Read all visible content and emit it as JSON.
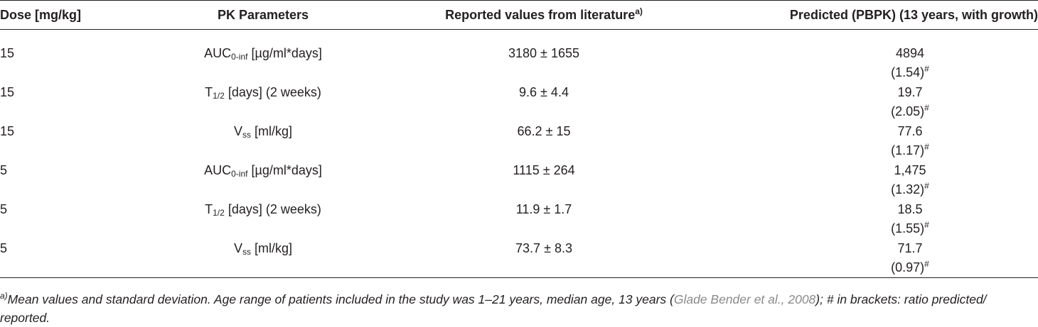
{
  "table": {
    "header": {
      "dose": "Dose [mg/kg]",
      "parameter": "PK Parameters",
      "reported": {
        "text": "Reported values from literature",
        "sup": "a)"
      },
      "predicted": "Predicted (PBPK) (13 years, with growth)"
    },
    "rows": [
      {
        "dose": "15",
        "parameter": {
          "main": "AUC",
          "sub": "0-inf",
          "rest": " [µg/ml*days]"
        },
        "reported": "3180 ± 1655",
        "predicted": "4894",
        "ratio": "(1.54)",
        "ratio_mark": "#"
      },
      {
        "dose": "15",
        "parameter": {
          "main": "T",
          "sub": "1/2",
          "rest": " [days] (2 weeks)"
        },
        "reported": "9.6 ± 4.4",
        "predicted": "19.7",
        "ratio": "(2.05)",
        "ratio_mark": "#"
      },
      {
        "dose": "15",
        "parameter": {
          "main": "V",
          "sub": "ss",
          "rest": " [ml/kg]"
        },
        "reported": "66.2 ± 15",
        "predicted": "77.6",
        "ratio": "(1.17)",
        "ratio_mark": "#"
      },
      {
        "dose": "5",
        "parameter": {
          "main": "AUC",
          "sub": "0-inf",
          "rest": " [µg/ml*days]"
        },
        "reported": "1115 ± 264",
        "predicted": "1,475",
        "ratio": "(1.32)",
        "ratio_mark": "#"
      },
      {
        "dose": "5",
        "parameter": {
          "main": "T",
          "sub": "1/2",
          "rest": " [days] (2 weeks)"
        },
        "reported": "11.9 ± 1.7",
        "predicted": "18.5",
        "ratio": "(1.55)",
        "ratio_mark": "#"
      },
      {
        "dose": "5",
        "parameter": {
          "main": "V",
          "sub": "ss",
          "rest": " [ml/kg]"
        },
        "reported": "73.7 ± 8.3",
        "predicted": "71.7",
        "ratio": "(0.97)",
        "ratio_mark": "#"
      }
    ]
  },
  "footnote": {
    "mark": "a)",
    "text": "Mean values and standard deviation. Age range of patients included in the study was 1–21 years, median age, 13 years (",
    "citation": "Glade Bender et al., 2008",
    "text_end": "); # in brackets: ratio predicted/ reported."
  }
}
